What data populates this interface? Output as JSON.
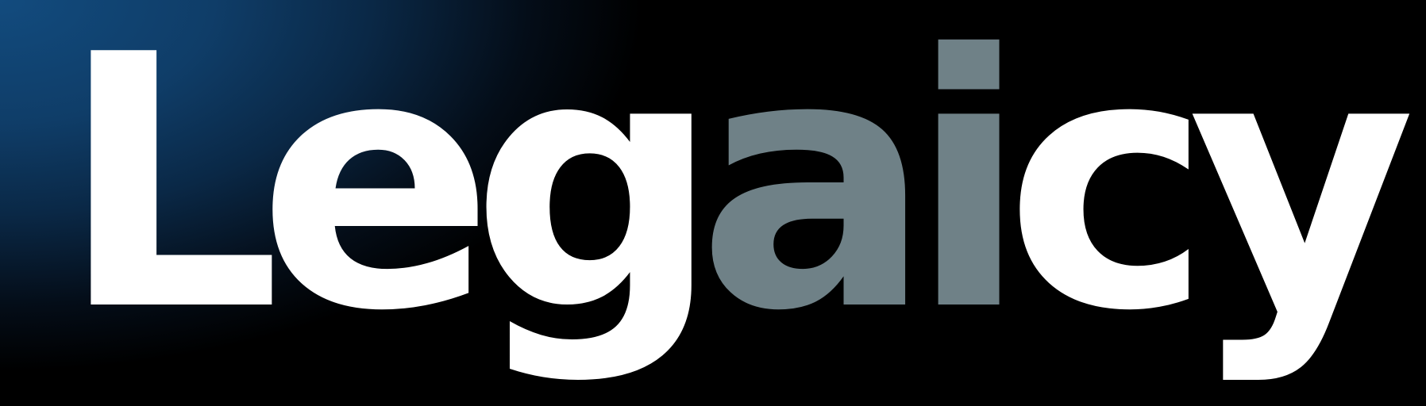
{
  "logo": {
    "text": "Legaicy",
    "parts": [
      {
        "text": "Leg",
        "color": "#ffffff"
      },
      {
        "text": "ai",
        "color": "#6f8187"
      },
      {
        "text": "cy",
        "color": "#ffffff"
      }
    ]
  },
  "colors": {
    "background": "#000000",
    "gradient_accent": "#124b7e",
    "text_primary": "#ffffff",
    "text_highlight": "#6f8187"
  }
}
